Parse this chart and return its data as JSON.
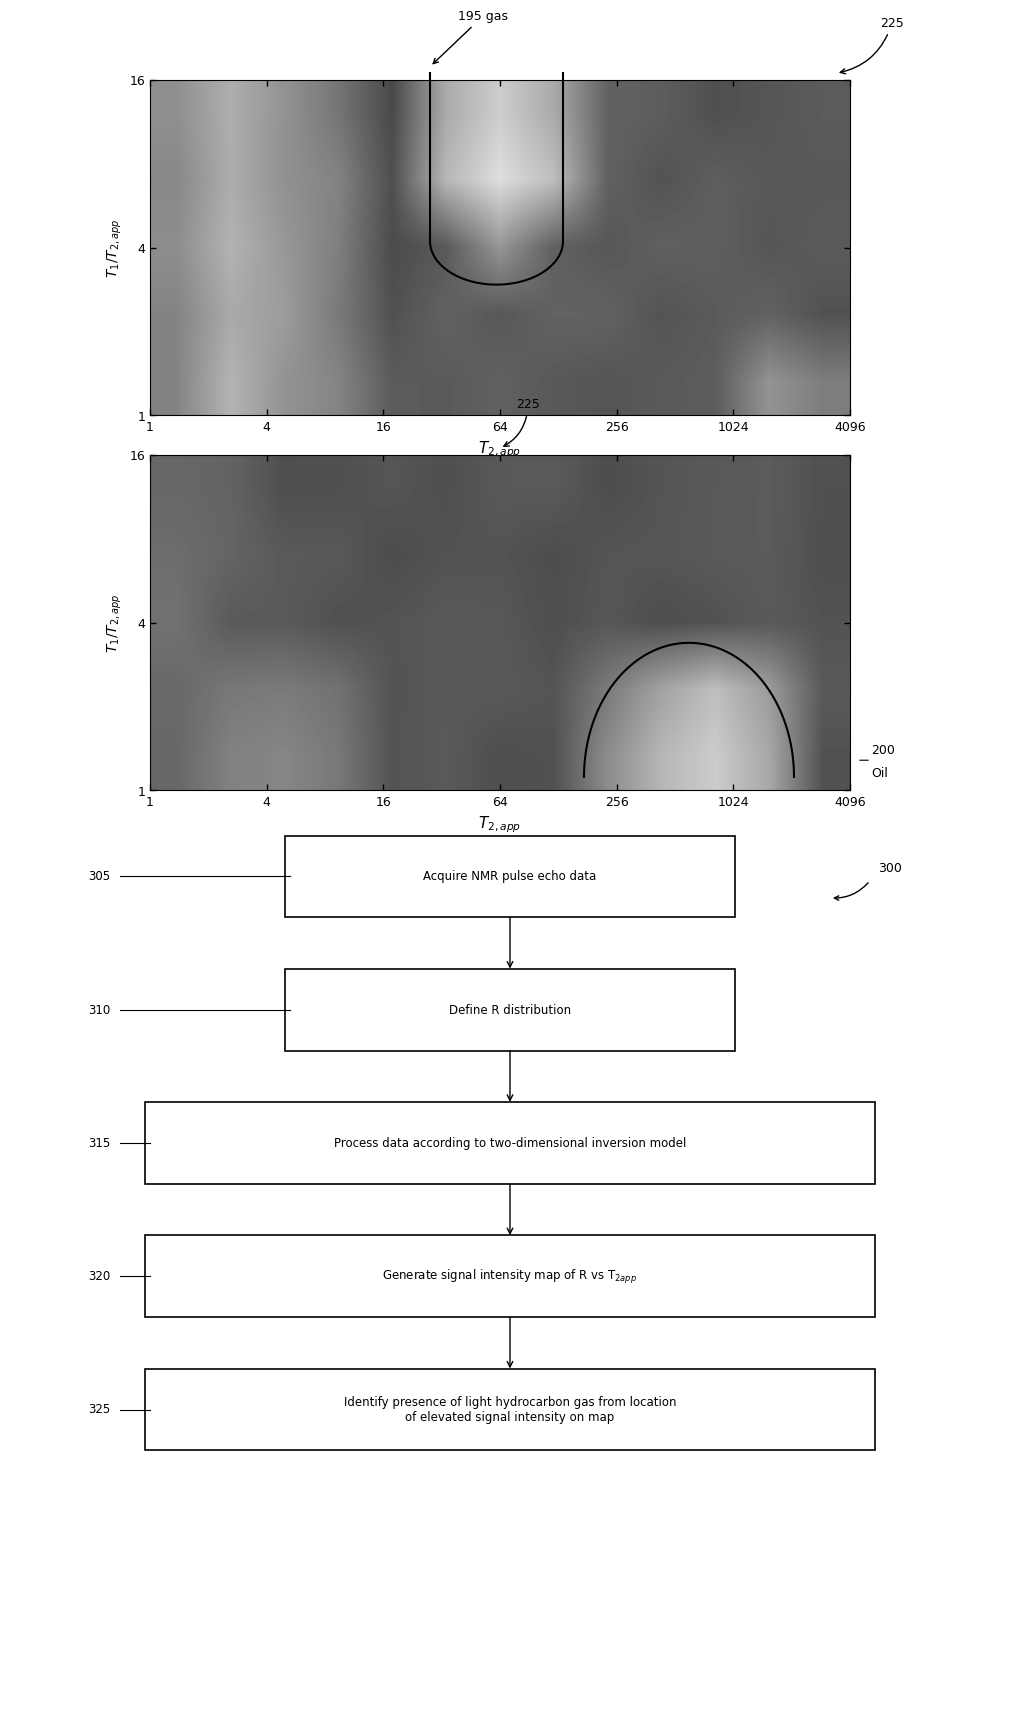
{
  "fig_width": 28.83,
  "fig_height": 49.46,
  "bg_color": "#ffffff",
  "plot1": {
    "xlabel": "$T_{2,app}$",
    "ylabel": "$T_1/T_{2,app}$",
    "yticks": [
      1,
      4,
      16
    ],
    "xticks": [
      1,
      4,
      16,
      64,
      256,
      1024,
      4096
    ],
    "gas_annotation_label": "195 gas",
    "curve_label": "225"
  },
  "plot2": {
    "xlabel": "$T_{2,app}$",
    "ylabel": "$T_1/T_{2,app}$",
    "yticks": [
      1,
      4,
      16
    ],
    "xticks": [
      1,
      4,
      16,
      64,
      256,
      1024,
      4096
    ],
    "oil_label": "200",
    "oil_sublabel": "Oil",
    "curve_label": "225"
  },
  "flowchart": {
    "ref_label": "300",
    "steps": [
      {
        "id": "305",
        "text": "Acquire NMR pulse echo data",
        "wide": false
      },
      {
        "id": "310",
        "text": "Define R distribution",
        "wide": false
      },
      {
        "id": "315",
        "text": "Process data according to two-dimensional inversion model",
        "wide": true
      },
      {
        "id": "320",
        "text": "Generate signal intensity map of R vs T$_{2app}$",
        "wide": true
      },
      {
        "id": "325",
        "text": "Identify presence of light hydrocarbon gas from location\nof elevated signal intensity on map",
        "wide": true
      }
    ]
  }
}
